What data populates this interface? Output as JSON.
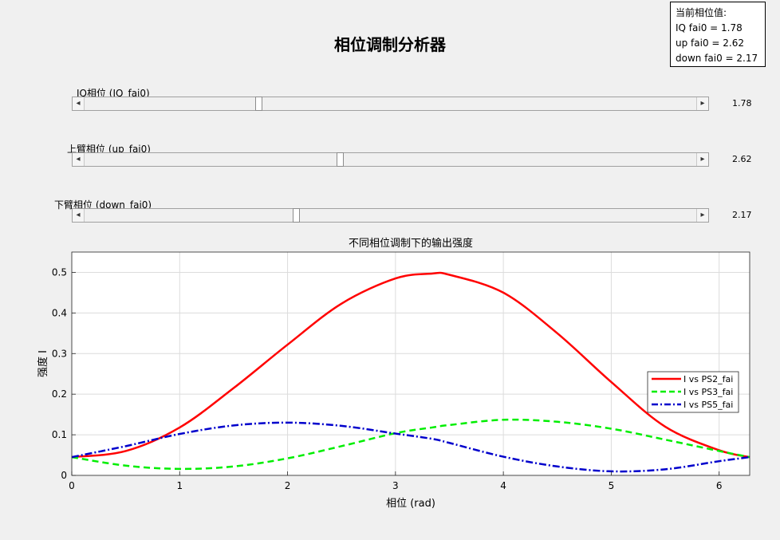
{
  "title": "相位调制分析器",
  "info": {
    "heading": "当前相位值:",
    "lines": [
      "IQ fai0 = 1.78",
      "up fai0 = 2.62",
      "down fai0 = 2.17"
    ]
  },
  "sliders": [
    {
      "label": "IQ相位 (IQ_fai0)",
      "value_text": "1.78",
      "fraction": 0.283
    },
    {
      "label": "上臂相位 (up_fai0)",
      "value_text": "2.62",
      "fraction": 0.417
    },
    {
      "label": "下臂相位 (down_fai0)",
      "value_text": "2.17",
      "fraction": 0.345
    }
  ],
  "chart_data": {
    "type": "line",
    "title": "不同相位调制下的输出强度",
    "xlabel": "相位 (rad)",
    "ylabel": "强度 I",
    "xlim": [
      0,
      6.2832
    ],
    "ylim": [
      0,
      0.55
    ],
    "xticks": [
      0,
      1,
      2,
      3,
      4,
      5,
      6
    ],
    "yticks": [
      0,
      0.1,
      0.2,
      0.3,
      0.4,
      0.5
    ],
    "grid": true,
    "legend_position": "right",
    "x": [
      0,
      0.5,
      1,
      1.5,
      2,
      2.5,
      3,
      3.34,
      3.5,
      4,
      4.5,
      5,
      5.5,
      6,
      6.2832
    ],
    "series": [
      {
        "name": "I vs PS2_fai",
        "color": "#ff0000",
        "style": "solid",
        "values": [
          0.045,
          0.06,
          0.118,
          0.215,
          0.322,
          0.423,
          0.485,
          0.497,
          0.494,
          0.45,
          0.35,
          0.23,
          0.12,
          0.062,
          0.045
        ]
      },
      {
        "name": "I vs PS3_fai",
        "color": "#00ee00",
        "style": "dashed",
        "values": [
          0.045,
          0.024,
          0.016,
          0.022,
          0.042,
          0.072,
          0.104,
          0.118,
          0.124,
          0.137,
          0.132,
          0.115,
          0.088,
          0.06,
          0.045
        ]
      },
      {
        "name": "I vs PS5_fai",
        "color": "#0000cc",
        "style": "dashdot",
        "values": [
          0.045,
          0.072,
          0.102,
          0.123,
          0.13,
          0.122,
          0.103,
          0.09,
          0.08,
          0.046,
          0.022,
          0.01,
          0.015,
          0.035,
          0.045
        ]
      }
    ]
  }
}
